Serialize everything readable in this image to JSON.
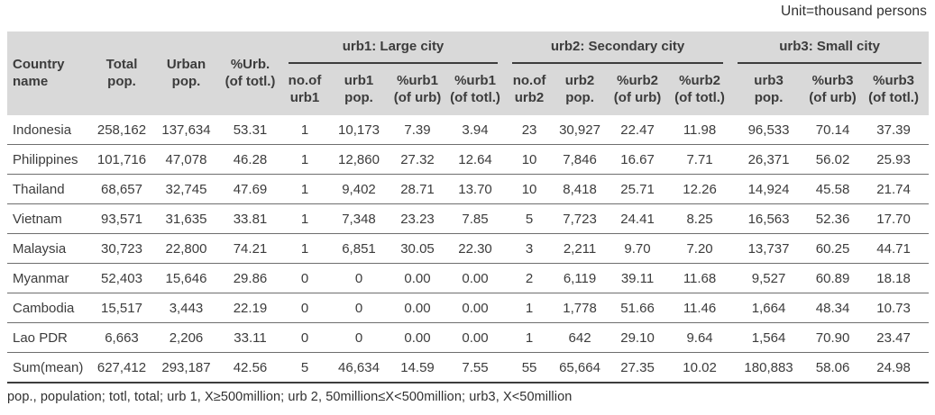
{
  "unit_label": "Unit=thousand persons",
  "table": {
    "fixed_headers": [
      "Country\nname",
      "Total\npop.",
      "Urban\npop.",
      "%Urb.\n(of totl.)"
    ],
    "groups": [
      {
        "label": "urb1: Large city",
        "columns": [
          "no.of\nurb1",
          "urb1\npop.",
          "%urb1\n(of urb)",
          "%urb1\n(of totl.)"
        ]
      },
      {
        "label": "urb2: Secondary city",
        "columns": [
          "no.of\nurb2",
          "urb2\npop.",
          "%urb2\n(of urb)",
          "%urb2\n(of totl.)"
        ]
      },
      {
        "label": "urb3: Small city",
        "columns": [
          "urb3\npop.",
          "%urb3\n(of urb)",
          "%urb3\n(of totl.)"
        ]
      }
    ],
    "rows": [
      [
        "Indonesia",
        "258,162",
        "137,634",
        "53.31",
        "1",
        "10,173",
        "7.39",
        "3.94",
        "23",
        "30,927",
        "22.47",
        "11.98",
        "96,533",
        "70.14",
        "37.39"
      ],
      [
        "Philippines",
        "101,716",
        "47,078",
        "46.28",
        "1",
        "12,860",
        "27.32",
        "12.64",
        "10",
        "7,846",
        "16.67",
        "7.71",
        "26,371",
        "56.02",
        "25.93"
      ],
      [
        "Thailand",
        "68,657",
        "32,745",
        "47.69",
        "1",
        "9,402",
        "28.71",
        "13.70",
        "10",
        "8,418",
        "25.71",
        "12.26",
        "14,924",
        "45.58",
        "21.74"
      ],
      [
        "Vietnam",
        "93,571",
        "31,635",
        "33.81",
        "1",
        "7,348",
        "23.23",
        "7.85",
        "5",
        "7,723",
        "24.41",
        "8.25",
        "16,563",
        "52.36",
        "17.70"
      ],
      [
        "Malaysia",
        "30,723",
        "22,800",
        "74.21",
        "1",
        "6,851",
        "30.05",
        "22.30",
        "3",
        "2,211",
        "9.70",
        "7.20",
        "13,737",
        "60.25",
        "44.71"
      ],
      [
        "Myanmar",
        "52,403",
        "15,646",
        "29.86",
        "0",
        "0",
        "0.00",
        "0.00",
        "2",
        "6,119",
        "39.11",
        "11.68",
        "9,527",
        "60.89",
        "18.18"
      ],
      [
        "Cambodia",
        "15,517",
        "3,443",
        "22.19",
        "0",
        "0",
        "0.00",
        "0.00",
        "1",
        "1,778",
        "51.66",
        "11.46",
        "1,664",
        "48.34",
        "10.73"
      ],
      [
        "Lao PDR",
        "6,663",
        "2,206",
        "33.11",
        "0",
        "0",
        "0.00",
        "0.00",
        "1",
        "642",
        "29.10",
        "9.64",
        "1,564",
        "70.90",
        "23.47"
      ],
      [
        "Sum(mean)",
        "627,412",
        "293,187",
        "42.56",
        "5",
        "46,634",
        "14.59",
        "7.55",
        "55",
        "65,664",
        "27.35",
        "10.02",
        "180,883",
        "58.06",
        "24.98"
      ]
    ]
  },
  "footnote": "pop., population; totl, total; urb 1, X≥500million; urb 2, 50million≤X<500million; urb3, X<50million",
  "colors": {
    "header_bg": "#d9d9d9",
    "text": "#3c3c3c",
    "rule_dark": "#3c3c3c",
    "rule_row": "#6e6e6e"
  }
}
